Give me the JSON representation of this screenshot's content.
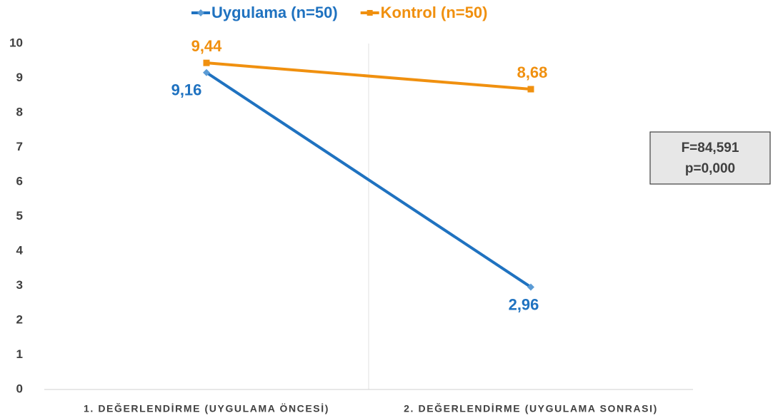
{
  "chart_data": {
    "type": "line",
    "categories": [
      "1. DEĞERLENDİRME (UYGULAMA ÖNCESİ)",
      "2. DEĞERLENDİRME (UYGULAMA SONRASI)"
    ],
    "series": [
      {
        "name": "Uygulama (n=50)",
        "color": "#1f72c0",
        "marker": "diamond",
        "values": [
          9.16,
          2.96
        ],
        "value_labels": [
          "9,16",
          "2,96"
        ]
      },
      {
        "name": "Kontrol (n=50)",
        "color": "#f0900f",
        "marker": "square",
        "values": [
          9.44,
          8.68
        ],
        "value_labels": [
          "9,44",
          "8,68"
        ]
      }
    ],
    "ylim": [
      0,
      10
    ],
    "yticks": [
      0,
      1,
      2,
      3,
      4,
      5,
      6,
      7,
      8,
      9,
      10
    ],
    "grid": true,
    "legend": "top",
    "annotation": [
      "F=84,591",
      "p=0,000"
    ]
  }
}
